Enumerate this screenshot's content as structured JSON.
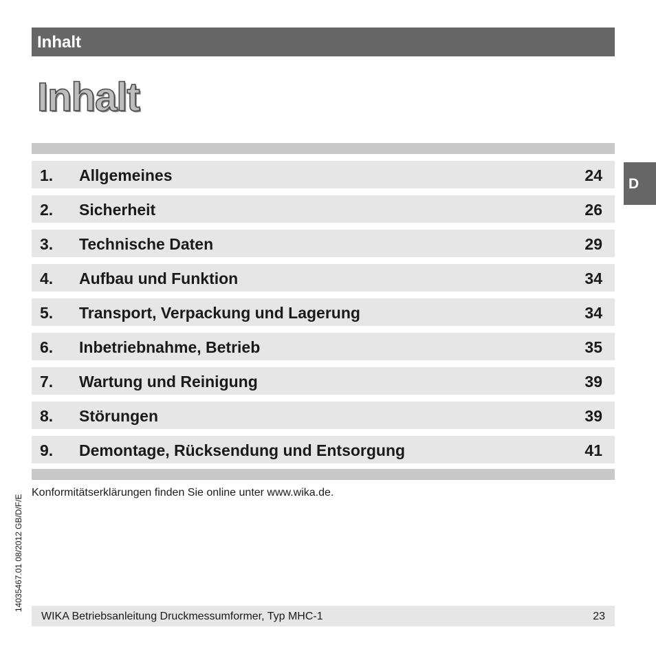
{
  "header": {
    "title": "Inhalt"
  },
  "page_title": "Inhalt",
  "side_tab": {
    "label": "D"
  },
  "toc": [
    {
      "num": "1.",
      "title": "Allgemeines",
      "page": "24"
    },
    {
      "num": "2.",
      "title": "Sicherheit",
      "page": "26"
    },
    {
      "num": "3.",
      "title": "Technische Daten",
      "page": "29"
    },
    {
      "num": "4.",
      "title": "Aufbau und Funktion",
      "page": "34"
    },
    {
      "num": "5.",
      "title": "Transport, Verpackung und Lagerung",
      "page": "34"
    },
    {
      "num": "6.",
      "title": "Inbetriebnahme, Betrieb",
      "page": "35"
    },
    {
      "num": "7.",
      "title": "Wartung und Reinigung",
      "page": "39"
    },
    {
      "num": "8.",
      "title": "Störungen",
      "page": "39"
    },
    {
      "num": "9.",
      "title": "Demontage, Rücksendung und Entsorgung",
      "page": "41"
    }
  ],
  "note": "Konformitätserklärungen finden Sie online unter www.wika.de.",
  "doc_code": "14035467.01 08/2012 GB/D/F/E",
  "footer": {
    "text": "WIKA Betriebsanleitung Druckmessumformer, Typ MHC-1",
    "page": "23"
  }
}
